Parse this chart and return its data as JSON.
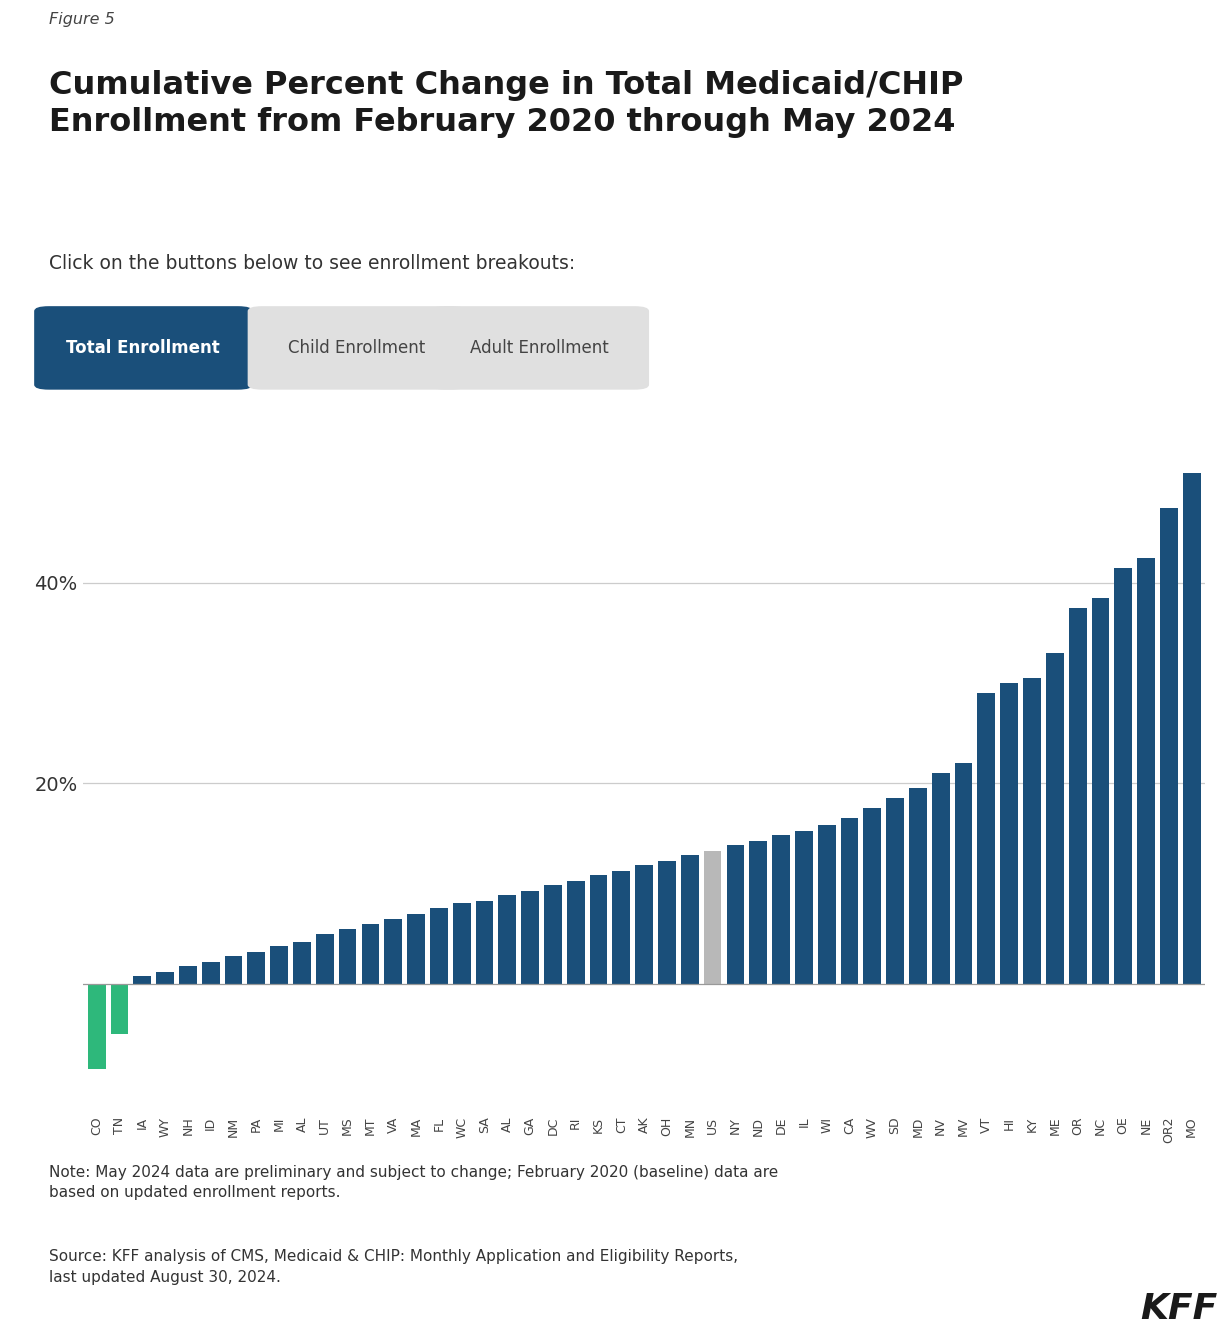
{
  "figure_label": "Figure 5",
  "title_line1": "Cumulative Percent Change in Total Medicaid/CHIP",
  "title_line2": "Enrollment from February 2020 through May 2024",
  "subtitle": "Click on the buttons below to see enrollment breakouts:",
  "buttons": [
    {
      "label": "Total Enrollment",
      "active": true
    },
    {
      "label": "Child Enrollment",
      "active": false
    },
    {
      "label": "Adult Enrollment",
      "active": false
    }
  ],
  "note": "Note: May 2024 data are preliminary and subject to change; February 2020 (baseline) data are\nbased on updated enrollment reports.",
  "source": "Source: KFF analysis of CMS, Medicaid & CHIP: Monthly Application and Eligibility Reports,\nlast updated August 30, 2024.",
  "states": [
    {
      "label": "CO",
      "value": -8.5,
      "type": "negative"
    },
    {
      "label": "TN",
      "value": -5.0,
      "type": "negative"
    },
    {
      "label": "IA",
      "value": 0.8,
      "type": "default"
    },
    {
      "label": "WY",
      "value": 1.2,
      "type": "default"
    },
    {
      "label": "NH",
      "value": 1.8,
      "type": "default"
    },
    {
      "label": "ID",
      "value": 2.2,
      "type": "default"
    },
    {
      "label": "NM",
      "value": 2.8,
      "type": "default"
    },
    {
      "label": "PA",
      "value": 3.2,
      "type": "default"
    },
    {
      "label": "MI",
      "value": 3.8,
      "type": "default"
    },
    {
      "label": "AL",
      "value": 4.2,
      "type": "default"
    },
    {
      "label": "UT",
      "value": 5.0,
      "type": "default"
    },
    {
      "label": "MS",
      "value": 5.5,
      "type": "default"
    },
    {
      "label": "MT",
      "value": 6.0,
      "type": "default"
    },
    {
      "label": "VA",
      "value": 6.5,
      "type": "default"
    },
    {
      "label": "MA",
      "value": 7.0,
      "type": "default"
    },
    {
      "label": "FL",
      "value": 7.5,
      "type": "default"
    },
    {
      "label": "WC",
      "value": 8.0,
      "type": "default"
    },
    {
      "label": "SA",
      "value": 8.2,
      "type": "default"
    },
    {
      "label": "AL",
      "value": 8.8,
      "type": "default"
    },
    {
      "label": "GA",
      "value": 9.2,
      "type": "default"
    },
    {
      "label": "DC",
      "value": 9.8,
      "type": "default"
    },
    {
      "label": "RI",
      "value": 10.2,
      "type": "default"
    },
    {
      "label": "KS",
      "value": 10.8,
      "type": "default"
    },
    {
      "label": "CT",
      "value": 11.2,
      "type": "default"
    },
    {
      "label": "AK",
      "value": 11.8,
      "type": "default"
    },
    {
      "label": "OH",
      "value": 12.2,
      "type": "default"
    },
    {
      "label": "MN",
      "value": 12.8,
      "type": "default"
    },
    {
      "label": "US",
      "value": 13.2,
      "type": "us_avg"
    },
    {
      "label": "NY",
      "value": 13.8,
      "type": "default"
    },
    {
      "label": "ND",
      "value": 14.2,
      "type": "default"
    },
    {
      "label": "DE",
      "value": 14.8,
      "type": "default"
    },
    {
      "label": "IL",
      "value": 15.2,
      "type": "default"
    },
    {
      "label": "WI",
      "value": 15.8,
      "type": "default"
    },
    {
      "label": "CA",
      "value": 16.5,
      "type": "default"
    },
    {
      "label": "WV",
      "value": 17.5,
      "type": "default"
    },
    {
      "label": "SD",
      "value": 18.5,
      "type": "default"
    },
    {
      "label": "MD",
      "value": 19.5,
      "type": "default"
    },
    {
      "label": "NV",
      "value": 21.0,
      "type": "default"
    },
    {
      "label": "MV",
      "value": 22.0,
      "type": "default"
    },
    {
      "label": "VT",
      "value": 29.0,
      "type": "default"
    },
    {
      "label": "HI",
      "value": 30.0,
      "type": "default"
    },
    {
      "label": "KY",
      "value": 30.5,
      "type": "default"
    },
    {
      "label": "ME",
      "value": 33.0,
      "type": "default"
    },
    {
      "label": "OR",
      "value": 37.5,
      "type": "default"
    },
    {
      "label": "NC",
      "value": 38.5,
      "type": "default"
    },
    {
      "label": "OE",
      "value": 41.5,
      "type": "default"
    },
    {
      "label": "NE",
      "value": 42.5,
      "type": "default"
    },
    {
      "label": "OR2",
      "value": 47.5,
      "type": "default"
    },
    {
      "label": "MO",
      "value": 51.0,
      "type": "default"
    }
  ],
  "color_negative": "#2eb87b",
  "color_us_avg": "#b8b8b8",
  "color_default": "#1a4f7a",
  "color_button_active_bg": "#1a4f7a",
  "color_button_active_fg": "#ffffff",
  "color_button_inactive_bg": "#e0e0e0",
  "color_button_inactive_fg": "#444444",
  "ylim_min": -13,
  "ylim_max": 58,
  "ytick_positions": [
    20,
    40
  ],
  "ytick_labels": [
    "20",
    "40"
  ],
  "gridline_color": "#cccccc",
  "zero_line_color": "#999999",
  "bg_color": "#ffffff",
  "text_color": "#1a1a1a",
  "figure_label_color": "#444444",
  "note_color": "#333333"
}
